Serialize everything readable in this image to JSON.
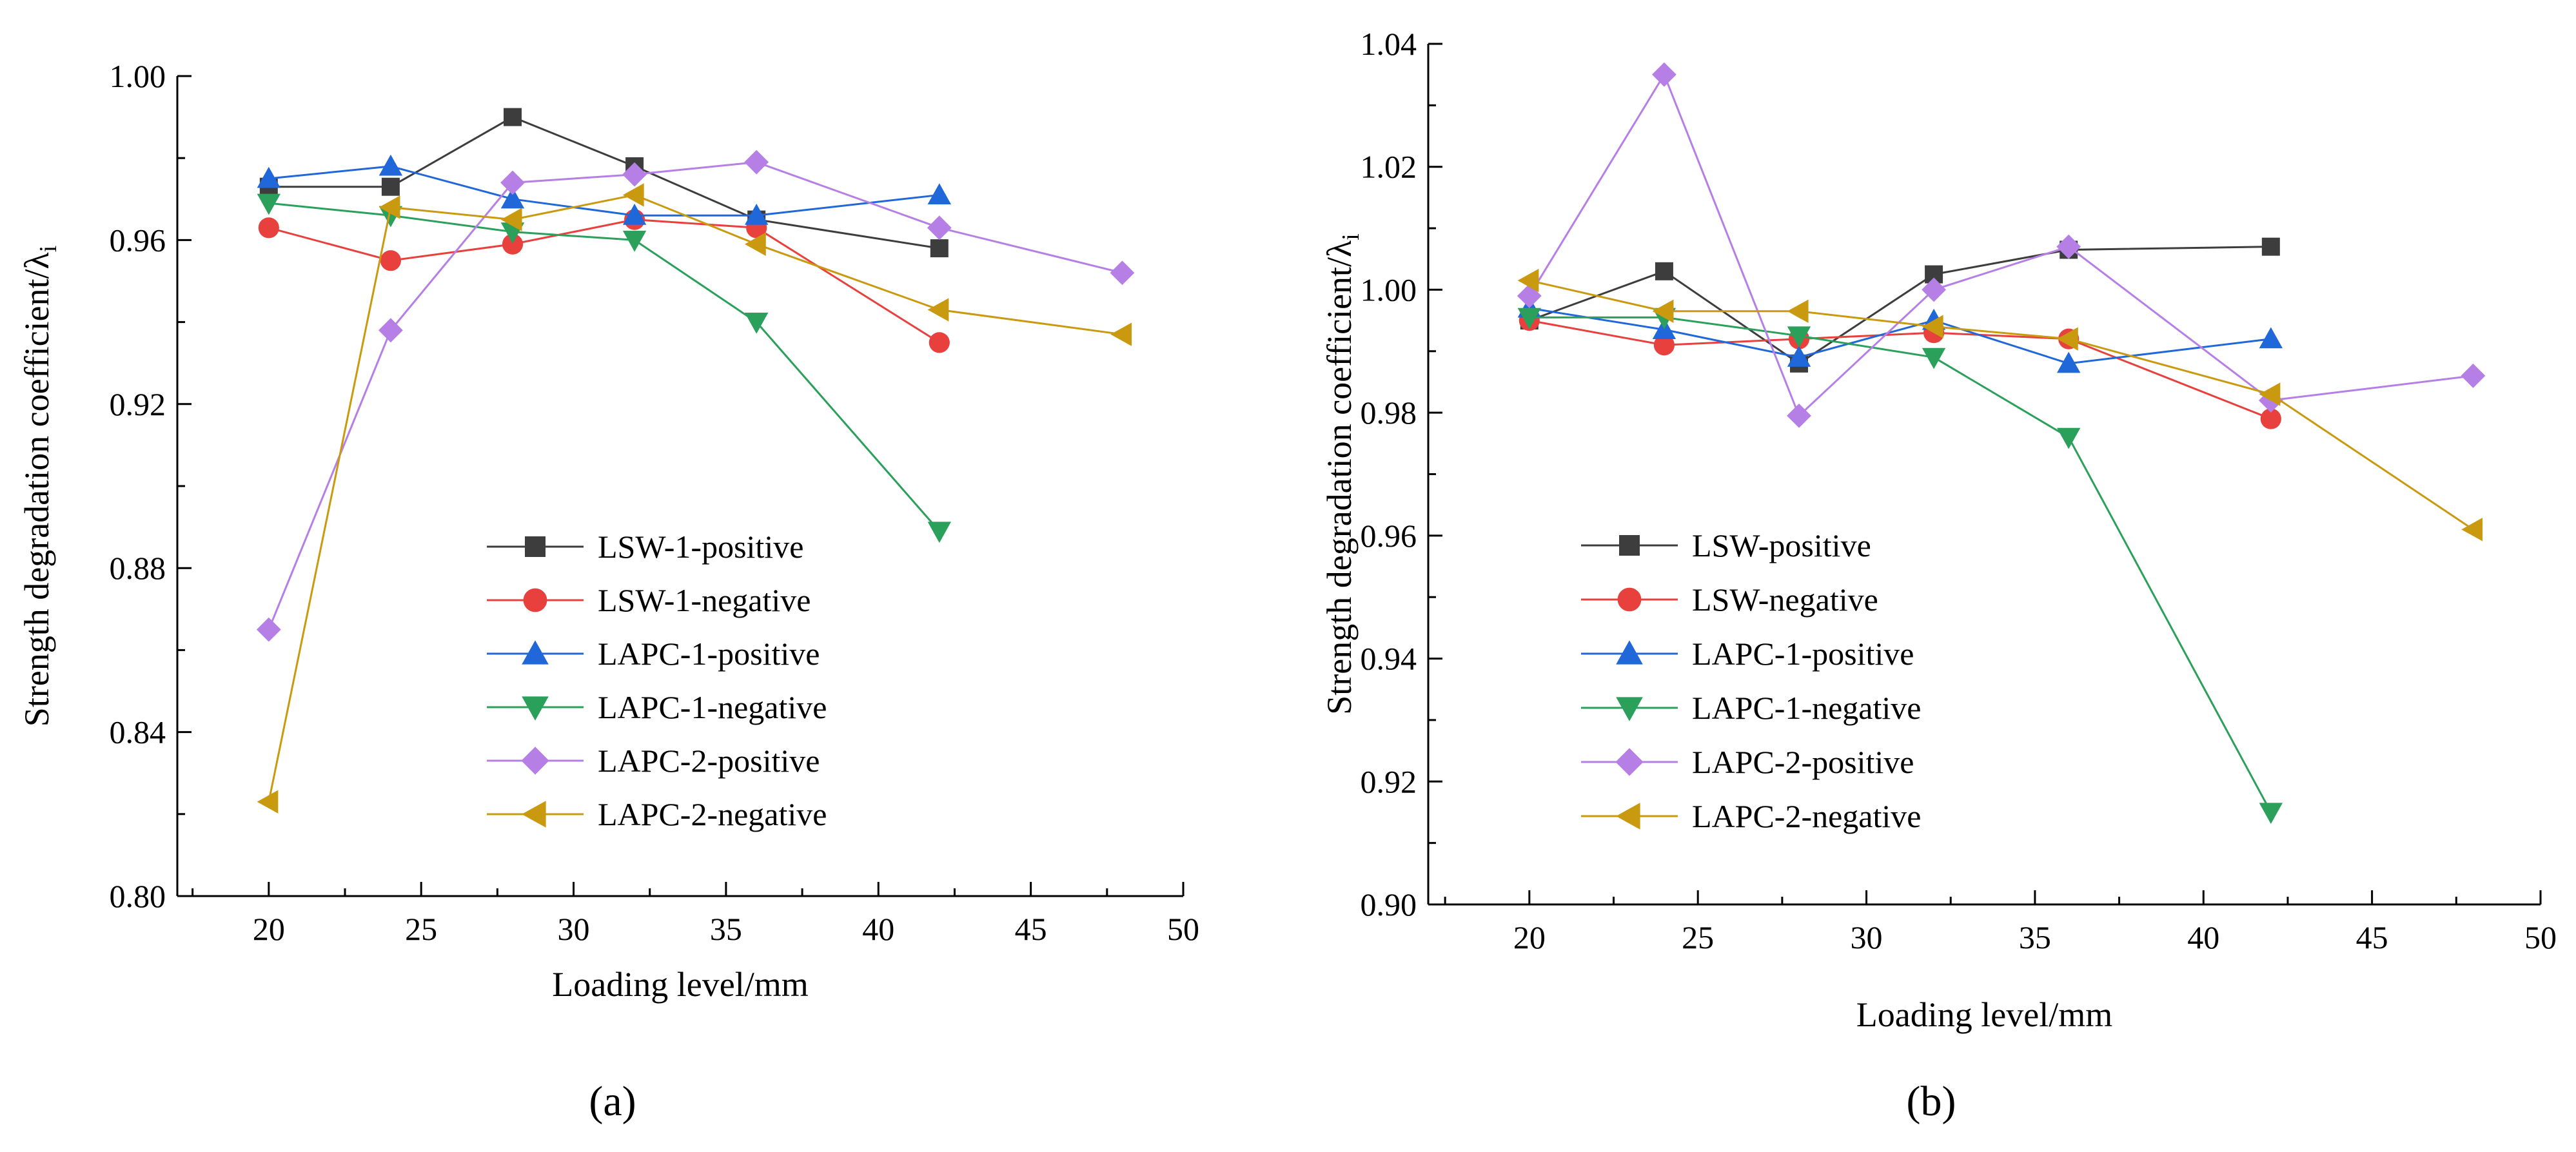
{
  "figure": {
    "panel_labels": [
      "(a)",
      "(b)"
    ]
  },
  "chart_data": [
    {
      "type": "line",
      "panel_label": "(a)",
      "title": "",
      "xlabel": "Loading level/mm",
      "ylabel": "Strength degradation coefficient/λ",
      "ylabel_subscript": "i",
      "xlim": [
        17,
        50
      ],
      "ylim": [
        0.8,
        1.0
      ],
      "xticks": [
        20,
        25,
        30,
        35,
        40,
        45,
        50
      ],
      "yticks": [
        0.8,
        0.84,
        0.88,
        0.92,
        0.96,
        1.0
      ],
      "xtick_labels": [
        "20",
        "25",
        "30",
        "35",
        "40",
        "45",
        "50"
      ],
      "ytick_labels": [
        "0.80",
        "0.84",
        "0.88",
        "0.92",
        "0.96",
        "1.00"
      ],
      "grid": false,
      "legend_position": "center-bottom",
      "series": [
        {
          "name": "LSW-1-positive",
          "color": "#3d3d3d",
          "marker": "square",
          "x": [
            20,
            24,
            28,
            32,
            36,
            42
          ],
          "values": [
            0.973,
            0.973,
            0.99,
            0.978,
            0.965,
            0.958
          ]
        },
        {
          "name": "LSW-1-negative",
          "color": "#e8403d",
          "marker": "circle",
          "x": [
            20,
            24,
            28,
            32,
            36,
            42
          ],
          "values": [
            0.963,
            0.955,
            0.959,
            0.965,
            0.963,
            0.935
          ]
        },
        {
          "name": "LAPC-1-positive",
          "color": "#2067d9",
          "marker": "triangle-up",
          "x": [
            20,
            24,
            28,
            32,
            36,
            42
          ],
          "values": [
            0.975,
            0.978,
            0.97,
            0.966,
            0.966,
            0.971
          ]
        },
        {
          "name": "LAPC-1-negative",
          "color": "#2aa05b",
          "marker": "triangle-down",
          "x": [
            20,
            24,
            28,
            32,
            36,
            42
          ],
          "values": [
            0.969,
            0.966,
            0.962,
            0.96,
            0.94,
            0.889
          ]
        },
        {
          "name": "LAPC-2-positive",
          "color": "#b57fe6",
          "marker": "diamond",
          "x": [
            20,
            24,
            28,
            32,
            36,
            42,
            48
          ],
          "values": [
            0.865,
            0.938,
            0.974,
            0.976,
            0.979,
            0.963,
            0.952
          ]
        },
        {
          "name": "LAPC-2-negative",
          "color": "#c99a0f",
          "marker": "triangle-left",
          "x": [
            20,
            24,
            28,
            32,
            36,
            42,
            48
          ],
          "values": [
            0.823,
            0.968,
            0.965,
            0.971,
            0.959,
            0.943,
            0.937
          ]
        }
      ]
    },
    {
      "type": "line",
      "panel_label": "(b)",
      "title": "",
      "xlabel": "Loading level/mm",
      "ylabel": "Strength degradation coefficient/λ",
      "ylabel_subscript": "i",
      "xlim": [
        17,
        50
      ],
      "ylim": [
        0.9,
        1.04
      ],
      "xticks": [
        20,
        25,
        30,
        35,
        40,
        45,
        50
      ],
      "yticks": [
        0.9,
        0.92,
        0.94,
        0.96,
        0.98,
        1.0,
        1.02,
        1.04
      ],
      "xtick_labels": [
        "20",
        "25",
        "30",
        "35",
        "40",
        "45",
        "50"
      ],
      "ytick_labels": [
        "0.90",
        "0.92",
        "0.94",
        "0.96",
        "0.98",
        "1.00",
        "1.02",
        "1.04"
      ],
      "grid": false,
      "legend_position": "center-bottom",
      "series": [
        {
          "name": "LSW-positive",
          "color": "#3d3d3d",
          "marker": "square",
          "x": [
            20,
            24,
            28,
            32,
            36,
            42
          ],
          "values": [
            0.995,
            1.003,
            0.988,
            1.0025,
            1.0065,
            1.007
          ]
        },
        {
          "name": "LSW-negative",
          "color": "#e8403d",
          "marker": "circle",
          "x": [
            20,
            24,
            28,
            32,
            36,
            42
          ],
          "values": [
            0.995,
            0.991,
            0.992,
            0.993,
            0.992,
            0.979
          ]
        },
        {
          "name": "LAPC-1-positive",
          "color": "#2067d9",
          "marker": "triangle-up",
          "x": [
            20,
            24,
            28,
            32,
            36,
            42
          ],
          "values": [
            0.997,
            0.9935,
            0.989,
            0.995,
            0.988,
            0.992
          ]
        },
        {
          "name": "LAPC-1-negative",
          "color": "#2aa05b",
          "marker": "triangle-down",
          "x": [
            20,
            24,
            28,
            32,
            36,
            42
          ],
          "values": [
            0.9955,
            0.9955,
            0.9925,
            0.989,
            0.976,
            0.915
          ]
        },
        {
          "name": "LAPC-2-positive",
          "color": "#b57fe6",
          "marker": "diamond",
          "x": [
            20,
            24,
            28,
            32,
            36,
            42,
            48
          ],
          "values": [
            0.999,
            1.035,
            0.9795,
            1.0,
            1.007,
            0.982,
            0.986
          ]
        },
        {
          "name": "LAPC-2-negative",
          "color": "#c99a0f",
          "marker": "triangle-left",
          "x": [
            20,
            24,
            28,
            32,
            36,
            42,
            48
          ],
          "values": [
            1.0015,
            0.9965,
            0.9965,
            0.994,
            0.992,
            0.983,
            0.961
          ]
        }
      ]
    }
  ]
}
